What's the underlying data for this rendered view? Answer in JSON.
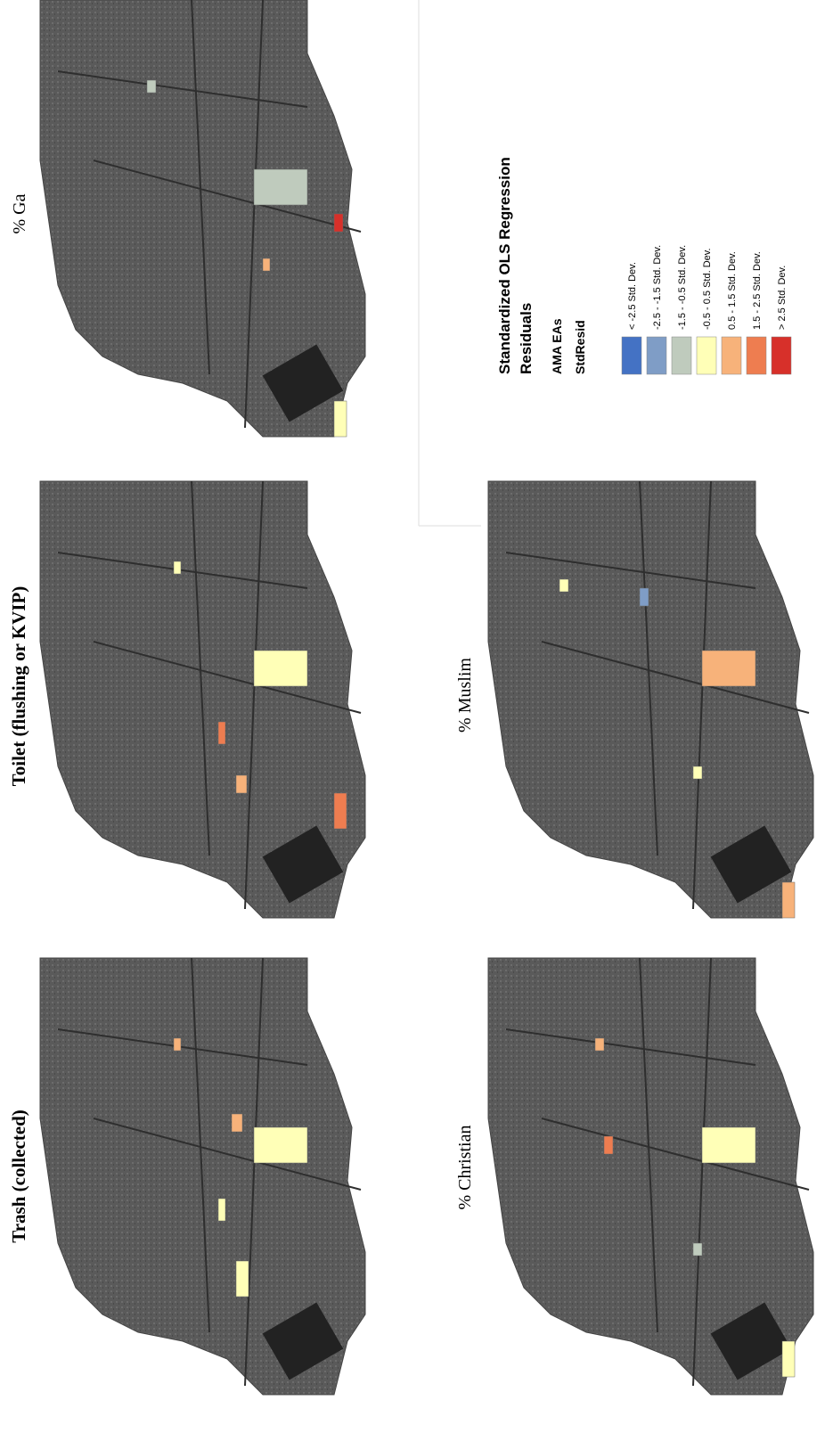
{
  "panels": [
    {
      "title": "Trash (collected)"
    },
    {
      "title": "Toilet (flushing or KVIP)"
    },
    {
      "title": "% Ga"
    },
    {
      "title": "% Christian"
    },
    {
      "title": "% Muslim"
    }
  ],
  "legend": {
    "title": [
      "Standardized OLS Regression",
      "Residuals"
    ],
    "layer": "AMA EAs",
    "field": "StdResid",
    "items": [
      {
        "label": "< -2.5 Std. Dev.",
        "color": "#4472c4"
      },
      {
        "label": "-2.5 - -1.5 Std. Dev.",
        "color": "#7f9dc6"
      },
      {
        "label": "-1.5 - -0.5 Std. Dev.",
        "color": "#bfcbbd"
      },
      {
        "label": "-0.5 - 0.5 Std. Dev.",
        "color": "#ffffb7"
      },
      {
        "label": "0.5 - 1.5 Std. Dev.",
        "color": "#f7b27a"
      },
      {
        "label": "1.5 - 2.5 Std. Dev.",
        "color": "#ee7d50"
      },
      {
        "label": "> 2.5 Std. Dev.",
        "color": "#d7302a"
      }
    ]
  }
}
